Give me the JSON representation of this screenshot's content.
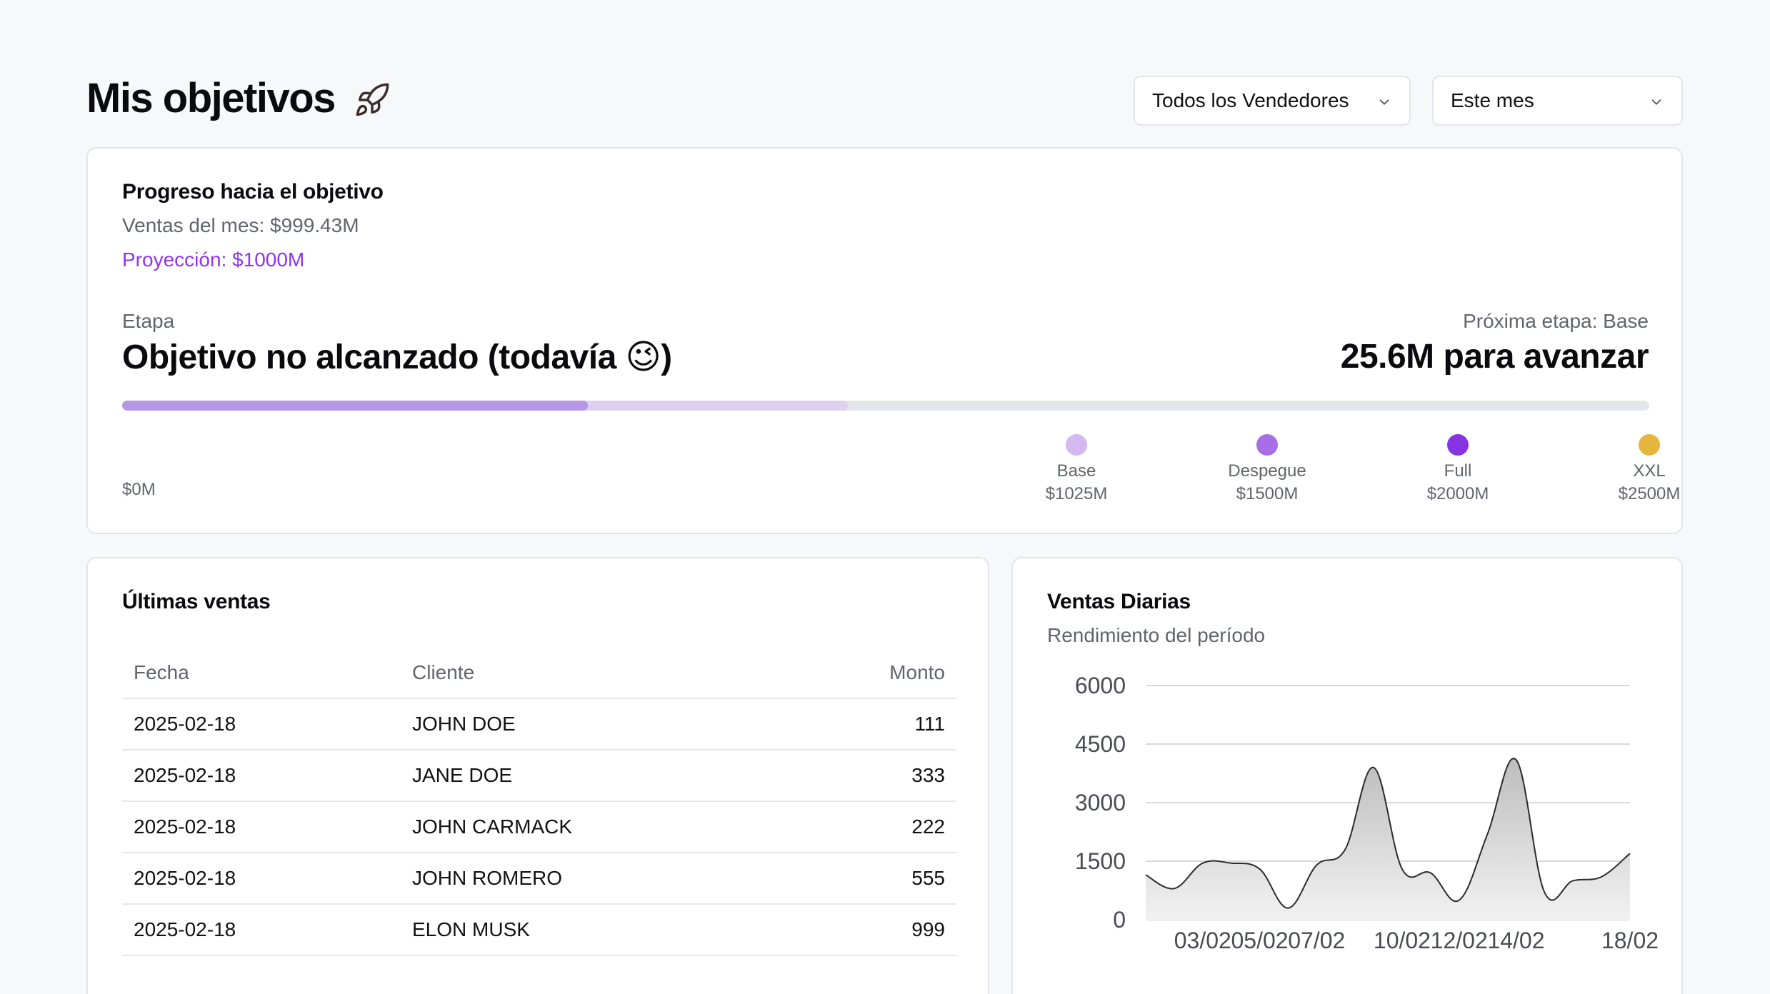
{
  "header": {
    "title": "Mis objetivos",
    "title_icon": "rocket-icon",
    "sellers_select": "Todos los Vendedores",
    "period_select": "Este mes"
  },
  "progress": {
    "title": "Progreso hacia el objetivo",
    "sales_month": "Ventas del mes: $999.43M",
    "projection": "Proyección: $1000M",
    "stage_label": "Etapa",
    "stage_value": "Objetivo no alcanzado (todavía 😉)",
    "next_label": "Próxima etapa: Base",
    "next_value": "25.6M para avanzar",
    "zero_label": "$0M",
    "bar_fill_fraction": 0.305,
    "bar_projection_fraction": 0.475,
    "colors": {
      "fill": "#b697e6",
      "projection": "#dccff0",
      "track": "#e5e6ea",
      "accent": "#9333ea"
    },
    "milestones": [
      {
        "name": "Base",
        "value": "$1025M",
        "color": "#d3b8f2"
      },
      {
        "name": "Despegue",
        "value": "$1500M",
        "color": "#a86ee8"
      },
      {
        "name": "Full",
        "value": "$2000M",
        "color": "#8534e0"
      },
      {
        "name": "XXL",
        "value": "$2500M",
        "color": "#e6b53c"
      }
    ]
  },
  "latest_sales": {
    "title": "Últimas ventas",
    "columns": [
      "Fecha",
      "Cliente",
      "Monto"
    ],
    "rows": [
      [
        "2025-02-18",
        "JOHN DOE",
        "111"
      ],
      [
        "2025-02-18",
        "JANE DOE",
        "333"
      ],
      [
        "2025-02-18",
        "JOHN CARMACK",
        "222"
      ],
      [
        "2025-02-18",
        "JOHN ROMERO",
        "555"
      ],
      [
        "2025-02-18",
        "ELON MUSK",
        "999"
      ]
    ]
  },
  "daily_sales": {
    "title": "Ventas Diarias",
    "subtitle": "Rendimiento del período"
  },
  "chart_data": {
    "type": "area",
    "title": "Ventas Diarias",
    "subtitle": "Rendimiento del período",
    "xlabel": "",
    "ylabel": "",
    "y_ticks": [
      0,
      1500,
      3000,
      4500,
      6000
    ],
    "ylim": [
      0,
      6000
    ],
    "x_ticks": [
      "03/02",
      "05/02",
      "07/02",
      "10/02",
      "12/02",
      "14/02",
      "18/02"
    ],
    "grid": true,
    "x_dates": [
      "01/02",
      "02/02",
      "03/02",
      "04/02",
      "05/02",
      "06/02",
      "07/02",
      "08/02",
      "09/02",
      "10/02",
      "11/02",
      "12/02",
      "13/02",
      "14/02",
      "15/02",
      "16/02",
      "17/02",
      "18/02"
    ],
    "values": [
      1150,
      800,
      1450,
      1450,
      1300,
      300,
      1400,
      1800,
      3900,
      1300,
      1200,
      500,
      2200,
      4100,
      700,
      1000,
      1100,
      1700
    ],
    "colors": {
      "line": "#2b2b2b",
      "fill_top": "#bdbdbd",
      "fill_bottom": "#f2f2f2",
      "grid": "#d9d9d9"
    }
  }
}
